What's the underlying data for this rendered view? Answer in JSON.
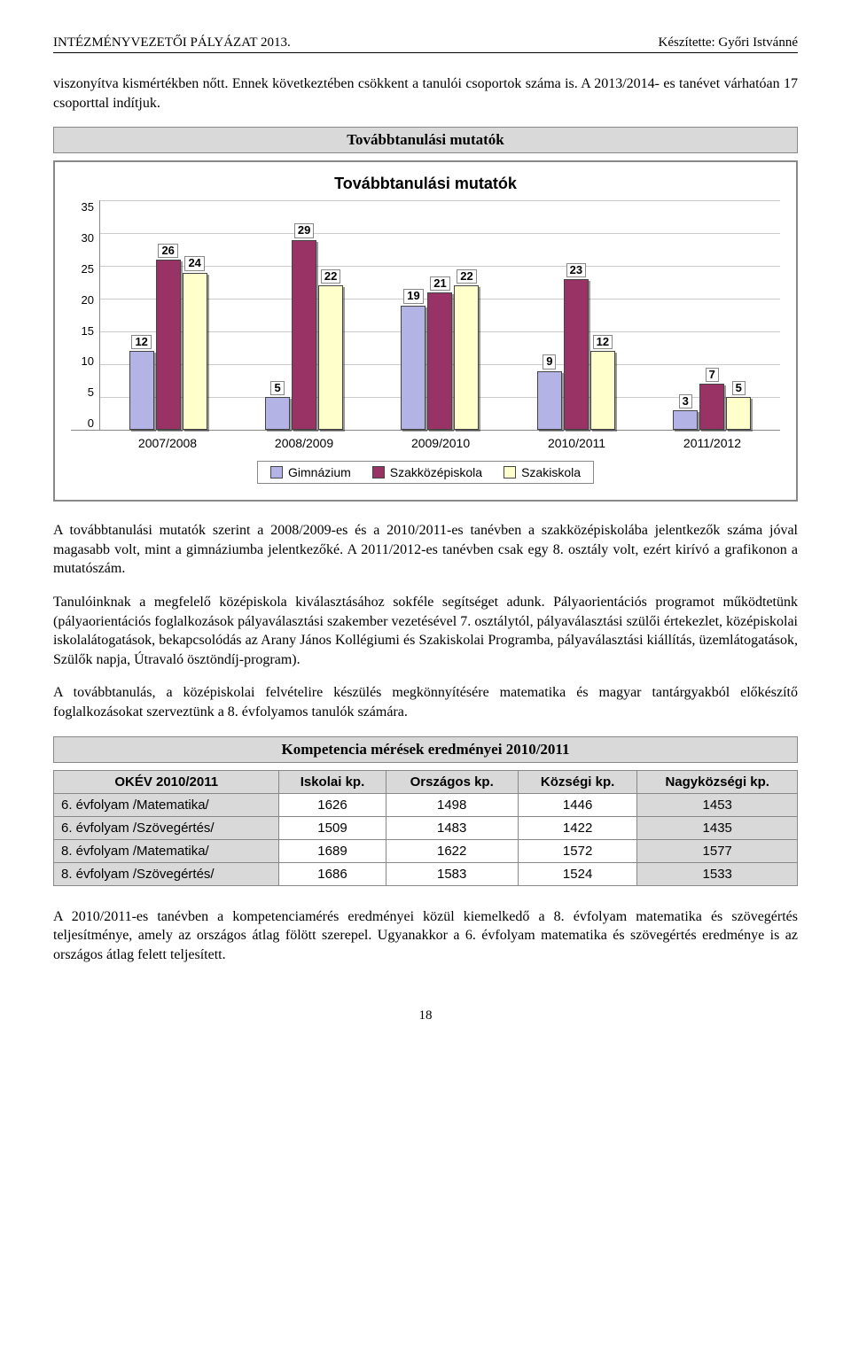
{
  "header": {
    "left": "INTÉZMÉNYVEZETŐI PÁLYÁZAT 2013.",
    "right": "Készítette: Győri Istvánné"
  },
  "paragraphs": {
    "intro": "viszonyítva kismértékben nőtt. Ennek következtében csökkent a tanulói csoportok száma is. A 2013/2014- es tanévet várhatóan 17 csoporttal indítjuk.",
    "after_chart_1": "A továbbtanulási mutatók szerint a 2008/2009-es és a 2010/2011-es tanévben a szakközépiskolába jelentkezők száma jóval magasabb volt, mint a gimnáziumba jelentkezőké. A 2011/2012-es tanévben csak egy 8. osztály volt, ezért kirívó a grafikonon a mutatószám.",
    "after_chart_2": "Tanulóinknak a megfelelő középiskola kiválasztásához sokféle segítséget adunk. Pályaorientációs programot működtetünk (pályaorientációs foglalkozások pályaválasztási szakember vezetésével 7. osztálytól, pályaválasztási szülői értekezlet, középiskolai iskolalátogatások, bekapcsolódás az Arany János Kollégiumi és Szakiskolai Programba, pályaválasztási kiállítás, üzemlátogatások, Szülők napja, Útravaló ösztöndíj-program).",
    "after_chart_3": "A továbbtanulás, a középiskolai felvételire készülés megkönnyítésére matematika és magyar tantárgyakból előkészítő foglalkozásokat szerveztünk a 8. évfolyamos tanulók számára.",
    "closing": "A 2010/2011-es tanévben a kompetenciamérés eredményei közül kiemelkedő a 8. évfolyam matematika és szövegértés teljesítménye, amely az országos átlag fölött szerepel. Ugyanakkor a 6. évfolyam matematika és szövegértés eredménye is az országos átlag felett teljesített."
  },
  "section_titles": {
    "chart": "Továbbtanulási mutatók",
    "table": "Kompetencia mérések eredményei 2010/2011"
  },
  "chart": {
    "type": "bar",
    "title": "Továbbtanulási mutatók",
    "ylim": [
      0,
      35
    ],
    "ytick_step": 5,
    "yticks": [
      "0",
      "5",
      "10",
      "15",
      "20",
      "25",
      "30",
      "35"
    ],
    "categories": [
      "2007/2008",
      "2008/2009",
      "2009/2010",
      "2010/2011",
      "2011/2012"
    ],
    "series": [
      {
        "name": "Gimnázium",
        "color": "#b3b3e6"
      },
      {
        "name": "Szakközépiskola",
        "color": "#993366"
      },
      {
        "name": "Szakiskola",
        "color": "#ffffcc"
      }
    ],
    "values": [
      [
        12,
        26,
        24
      ],
      [
        5,
        29,
        22
      ],
      [
        19,
        21,
        22
      ],
      [
        9,
        23,
        12
      ],
      [
        3,
        7,
        5
      ]
    ],
    "grid_color": "#cccccc",
    "bar_border": "#444444",
    "background_color": "#ffffff"
  },
  "table": {
    "columns": [
      "OKÉV 2010/2011",
      "Iskolai kp.",
      "Országos kp.",
      "Községi kp.",
      "Nagyközségi kp."
    ],
    "rows": [
      [
        "6. évfolyam /Matematika/",
        "1626",
        "1498",
        "1446",
        "1453"
      ],
      [
        "6. évfolyam /Szövegértés/",
        "1509",
        "1483",
        "1422",
        "1435"
      ],
      [
        "8. évfolyam /Matematika/",
        "1689",
        "1622",
        "1572",
        "1577"
      ],
      [
        "8. évfolyam /Szövegértés/",
        "1686",
        "1583",
        "1524",
        "1533"
      ]
    ],
    "header_bg": "#d9d9d9",
    "border_color": "#888888"
  },
  "page_number": "18"
}
